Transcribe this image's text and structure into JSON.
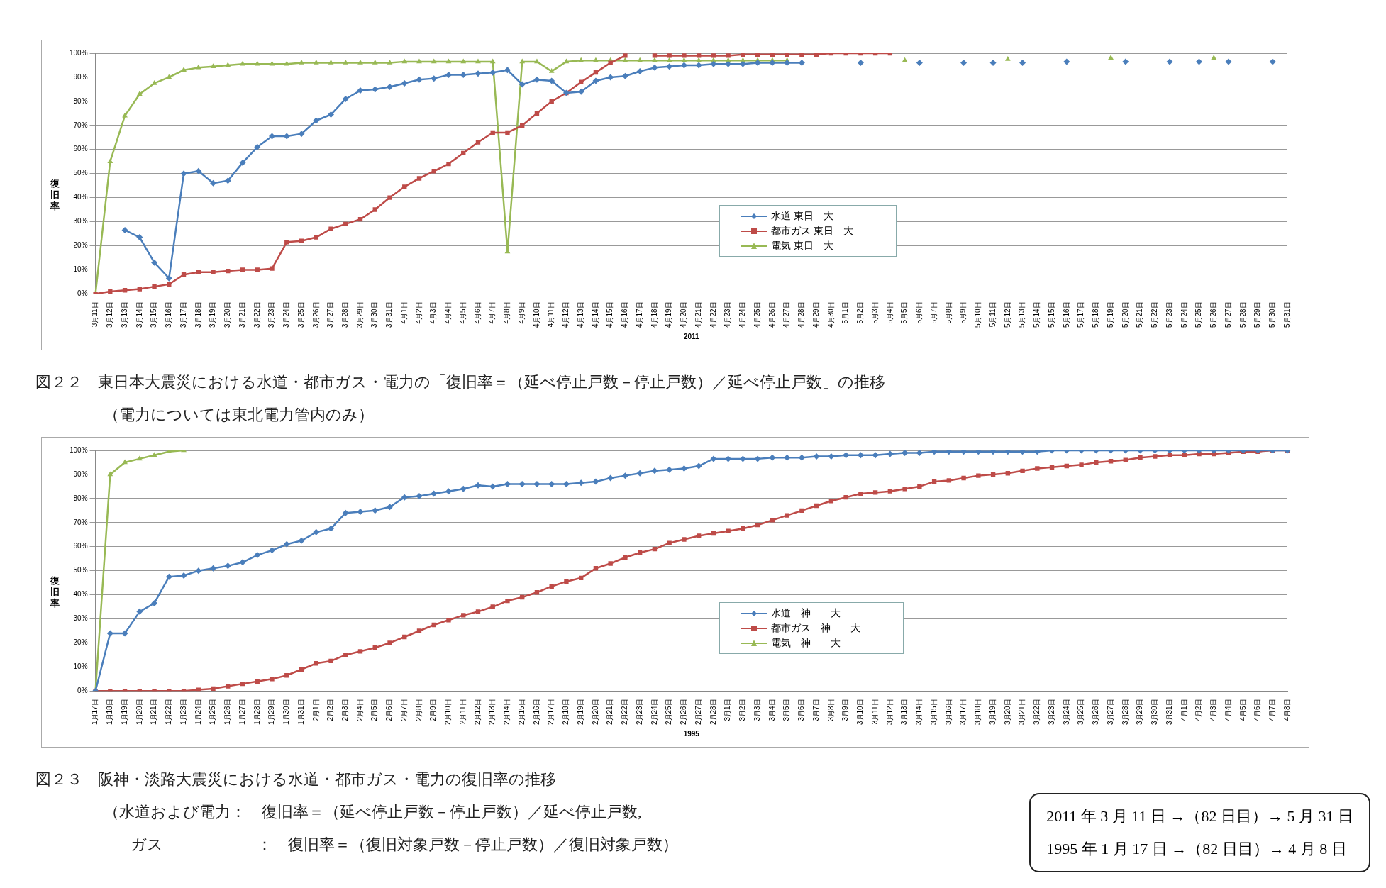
{
  "chart_data": [
    {
      "type": "line",
      "xlabel": "2011",
      "ylabel": "復旧率",
      "title": "図２２　東日本大震災における水道・都市ガス・電力の「復旧率＝（延べ停止戸数－停止戸数）／延べ停止戸数」の推移",
      "annotations": [
        "（電力については東北電力管内のみ）"
      ],
      "categories": [
        "3月11日",
        "3月12日",
        "3月13日",
        "3月14日",
        "3月15日",
        "3月16日",
        "3月17日",
        "3月18日",
        "3月19日",
        "3月20日",
        "3月21日",
        "3月22日",
        "3月23日",
        "3月24日",
        "3月25日",
        "3月26日",
        "3月27日",
        "3月28日",
        "3月29日",
        "3月30日",
        "3月31日",
        "4月1日",
        "4月2日",
        "4月3日",
        "4月4日",
        "4月5日",
        "4月6日",
        "4月7日",
        "4月8日",
        "4月9日",
        "4月10日",
        "4月11日",
        "4月12日",
        "4月13日",
        "4月14日",
        "4月15日",
        "4月16日",
        "4月17日",
        "4月18日",
        "4月19日",
        "4月20日",
        "4月21日",
        "4月22日",
        "4月23日",
        "4月24日",
        "4月25日",
        "4月26日",
        "4月27日",
        "4月28日",
        "4月29日",
        "4月30日",
        "5月1日",
        "5月2日",
        "5月3日",
        "5月4日",
        "5月5日",
        "5月6日",
        "5月7日",
        "5月8日",
        "5月9日",
        "5月10日",
        "5月11日",
        "5月12日",
        "5月13日",
        "5月14日",
        "5月15日",
        "5月16日",
        "5月17日",
        "5月18日",
        "5月19日",
        "5月20日",
        "5月21日",
        "5月22日",
        "5月23日",
        "5月24日",
        "5月25日",
        "5月26日",
        "5月27日",
        "5月28日",
        "5月29日",
        "5月30日",
        "5月31日"
      ],
      "ylim": [
        0,
        100
      ],
      "yticks": [
        {
          "value": 0,
          "label": "0%"
        },
        {
          "value": 10,
          "label": "10%"
        },
        {
          "value": 20,
          "label": "20%"
        },
        {
          "value": 30,
          "label": "30%"
        },
        {
          "value": 40,
          "label": "40%"
        },
        {
          "value": 50,
          "label": "50%"
        },
        {
          "value": 60,
          "label": "60%"
        },
        {
          "value": 70,
          "label": "70%"
        },
        {
          "value": 80,
          "label": "80%"
        },
        {
          "value": 90,
          "label": "90%"
        },
        {
          "value": 100,
          "label": "100%"
        }
      ],
      "grid": "y",
      "legend": "bottom",
      "series": [
        {
          "name": "水道 東日　大",
          "color": "#4a7ebb",
          "marker": "diamond",
          "values": [
            null,
            null,
            26.5,
            23.5,
            13,
            6.5,
            50,
            51,
            46,
            47,
            54.5,
            61,
            65.5,
            65.5,
            66.5,
            72,
            74.5,
            81,
            84.5,
            85,
            86,
            87.5,
            89,
            89.5,
            91,
            91,
            91.5,
            92,
            93,
            87,
            89,
            88.5,
            83.5,
            84,
            88.5,
            90,
            90.5,
            92.5,
            94,
            94.5,
            95,
            95,
            95.5,
            95.5,
            95.5,
            96,
            96,
            96,
            96,
            null,
            null,
            null,
            96,
            null,
            null,
            null,
            96,
            null,
            null,
            96,
            null,
            96,
            null,
            96,
            null,
            null,
            96.5,
            null,
            null,
            null,
            96.5,
            null,
            null,
            96.5,
            null,
            96.5,
            null,
            96.5,
            null,
            null,
            96.5,
            null
          ]
        },
        {
          "name": "都市ガス 東日　大",
          "color": "#be4b48",
          "marker": "square",
          "values": [
            0,
            1,
            1.5,
            2,
            3,
            4,
            8,
            9,
            9,
            9.5,
            10,
            10,
            10.5,
            21.5,
            22,
            23.5,
            27,
            29,
            31,
            35,
            40,
            44.5,
            48,
            51,
            54,
            58.5,
            63,
            67,
            67,
            70,
            75,
            80,
            83.5,
            88,
            92,
            96,
            99,
            null,
            99,
            99,
            99,
            99,
            99,
            99,
            99.5,
            99.5,
            99.5,
            99.5,
            99.5,
            99.5,
            100,
            100,
            100,
            100,
            100,
            null,
            null,
            null,
            null,
            null,
            null,
            null,
            null,
            null,
            null,
            null,
            null,
            null,
            null,
            null,
            null,
            null,
            null,
            null,
            null,
            null,
            null,
            null,
            null,
            null,
            null,
            null
          ]
        },
        {
          "name": "電気 東日　大",
          "color": "#98b954",
          "marker": "triangle",
          "values": [
            0,
            55,
            74,
            83,
            87.5,
            90,
            93,
            94,
            94.5,
            95,
            95.5,
            95.5,
            95.5,
            95.5,
            96,
            96,
            96,
            96,
            96,
            96,
            96,
            96.5,
            96.5,
            96.5,
            96.5,
            96.5,
            96.5,
            96.5,
            17.5,
            96.5,
            96.5,
            92.5,
            96.5,
            97,
            97,
            97,
            97,
            97,
            97,
            97,
            97,
            97,
            97,
            97,
            97,
            97,
            97,
            97,
            null,
            null,
            null,
            null,
            null,
            null,
            null,
            97,
            null,
            null,
            null,
            null,
            null,
            null,
            97.5,
            null,
            null,
            null,
            null,
            null,
            null,
            98,
            null,
            null,
            null,
            null,
            null,
            null,
            98,
            null,
            null,
            null,
            null,
            null
          ]
        }
      ]
    },
    {
      "type": "line",
      "xlabel": "1995",
      "ylabel": "復旧率",
      "title": "図２３　阪神・淡路大震災における水道・都市ガス・電力の復旧率の推移",
      "annotations": [
        "（水道および電力：　復旧率＝（延べ停止戸数－停止戸数）／延べ停止戸数,",
        "ガス　　　　　　：　復旧率＝（復旧対象戸数－停止戸数）／復旧対象戸数）"
      ],
      "categories": [
        "1月17日",
        "1月18日",
        "1月19日",
        "1月20日",
        "1月21日",
        "1月22日",
        "1月23日",
        "1月24日",
        "1月25日",
        "1月26日",
        "1月27日",
        "1月28日",
        "1月29日",
        "1月30日",
        "1月31日",
        "2月1日",
        "2月2日",
        "2月3日",
        "2月4日",
        "2月5日",
        "2月6日",
        "2月7日",
        "2月8日",
        "2月9日",
        "2月10日",
        "2月11日",
        "2月12日",
        "2月13日",
        "2月14日",
        "2月15日",
        "2月16日",
        "2月17日",
        "2月18日",
        "2月19日",
        "2月20日",
        "2月21日",
        "2月22日",
        "2月23日",
        "2月24日",
        "2月25日",
        "2月26日",
        "2月27日",
        "2月28日",
        "3月1日",
        "3月2日",
        "3月3日",
        "3月4日",
        "3月5日",
        "3月6日",
        "3月7日",
        "3月8日",
        "3月9日",
        "3月10日",
        "3月11日",
        "3月12日",
        "3月13日",
        "3月14日",
        "3月15日",
        "3月16日",
        "3月17日",
        "3月18日",
        "3月19日",
        "3月20日",
        "3月21日",
        "3月22日",
        "3月23日",
        "3月24日",
        "3月25日",
        "3月26日",
        "3月27日",
        "3月28日",
        "3月29日",
        "3月30日",
        "3月31日",
        "4月1日",
        "4月2日",
        "4月3日",
        "4月4日",
        "4月5日",
        "4月6日",
        "4月7日",
        "4月8日"
      ],
      "ylim": [
        0,
        100
      ],
      "yticks": [
        {
          "value": 0,
          "label": "0%"
        },
        {
          "value": 10,
          "label": "10%"
        },
        {
          "value": 20,
          "label": "20%"
        },
        {
          "value": 30,
          "label": "30%"
        },
        {
          "value": 40,
          "label": "40%"
        },
        {
          "value": 50,
          "label": "50%"
        },
        {
          "value": 60,
          "label": "60%"
        },
        {
          "value": 70,
          "label": "70%"
        },
        {
          "value": 80,
          "label": "80%"
        },
        {
          "value": 90,
          "label": "90%"
        },
        {
          "value": 100,
          "label": "100%"
        }
      ],
      "grid": "y",
      "legend": "bottom",
      "series": [
        {
          "name": "水道　神　　大",
          "color": "#4a7ebb",
          "marker": "diamond",
          "values": [
            0,
            24,
            24,
            33,
            36.5,
            47.5,
            48,
            50,
            51,
            52,
            53.5,
            56.5,
            58.5,
            61,
            62.5,
            66,
            67.5,
            74,
            74.5,
            75,
            76.5,
            80.5,
            81,
            82,
            83,
            84,
            85.5,
            85,
            86,
            86,
            86,
            86,
            86,
            86.5,
            87,
            88.5,
            89.5,
            90.5,
            91.5,
            92,
            92.5,
            93.5,
            96.5,
            96.5,
            96.5,
            96.5,
            97,
            97,
            97,
            97.5,
            97.5,
            98,
            98,
            98,
            98.5,
            99,
            99,
            99.5,
            99.5,
            99.5,
            99.5,
            99.5,
            99.5,
            99.5,
            99.5,
            100,
            100,
            100,
            100,
            100,
            100,
            100,
            100,
            100,
            100,
            100,
            100,
            100,
            100,
            100,
            100,
            100
          ]
        },
        {
          "name": "都市ガス　神　　大",
          "color": "#be4b48",
          "marker": "square",
          "values": [
            0,
            0,
            0,
            0,
            0,
            0,
            0,
            0.5,
            1,
            2,
            3,
            4,
            5,
            6.5,
            9,
            11.5,
            12.5,
            15,
            16.5,
            18,
            20,
            22.5,
            25,
            27.5,
            29.5,
            31.5,
            33,
            35,
            37.5,
            39,
            41,
            43.5,
            45.5,
            47,
            51,
            53,
            55.5,
            57.5,
            59,
            61.5,
            63,
            64.5,
            65.5,
            66.5,
            67.5,
            69,
            71,
            73,
            75,
            77,
            79,
            80.5,
            82,
            82.5,
            83,
            84,
            85,
            87,
            87.5,
            88.5,
            89.5,
            90,
            90.5,
            91.5,
            92.5,
            93,
            93.5,
            94,
            95,
            95.5,
            96,
            97,
            97.5,
            98,
            98,
            98.5,
            98.5,
            99,
            99.5,
            99.5,
            100,
            100
          ]
        },
        {
          "name": "電気　神　　大",
          "color": "#98b954",
          "marker": "triangle",
          "values": [
            0,
            90,
            95,
            96.5,
            98,
            99.5,
            100,
            null,
            null,
            null,
            null,
            null,
            null,
            null,
            null,
            null,
            null,
            null,
            null,
            null,
            null,
            null,
            null,
            null,
            null,
            null,
            null,
            null,
            null,
            null,
            null,
            null,
            null,
            null,
            null,
            null,
            null,
            null,
            null,
            null,
            null,
            null,
            null,
            null,
            null,
            null,
            null,
            null,
            null,
            null,
            null,
            null,
            null,
            null,
            null,
            null,
            null,
            null,
            null,
            null,
            null,
            null,
            null,
            null,
            null,
            null,
            null,
            null,
            null,
            null,
            null,
            null,
            null,
            null,
            null,
            null,
            null,
            null,
            null,
            null,
            null,
            null
          ]
        }
      ]
    },
    {
      "type": "other",
      "annotations": [
        "2011 年 3 月 11 日 →（82 日目）→ 5 月 31 日",
        "1995 年 1 月 17 日 →（82 日目）→ 4 月 8 日"
      ]
    }
  ]
}
